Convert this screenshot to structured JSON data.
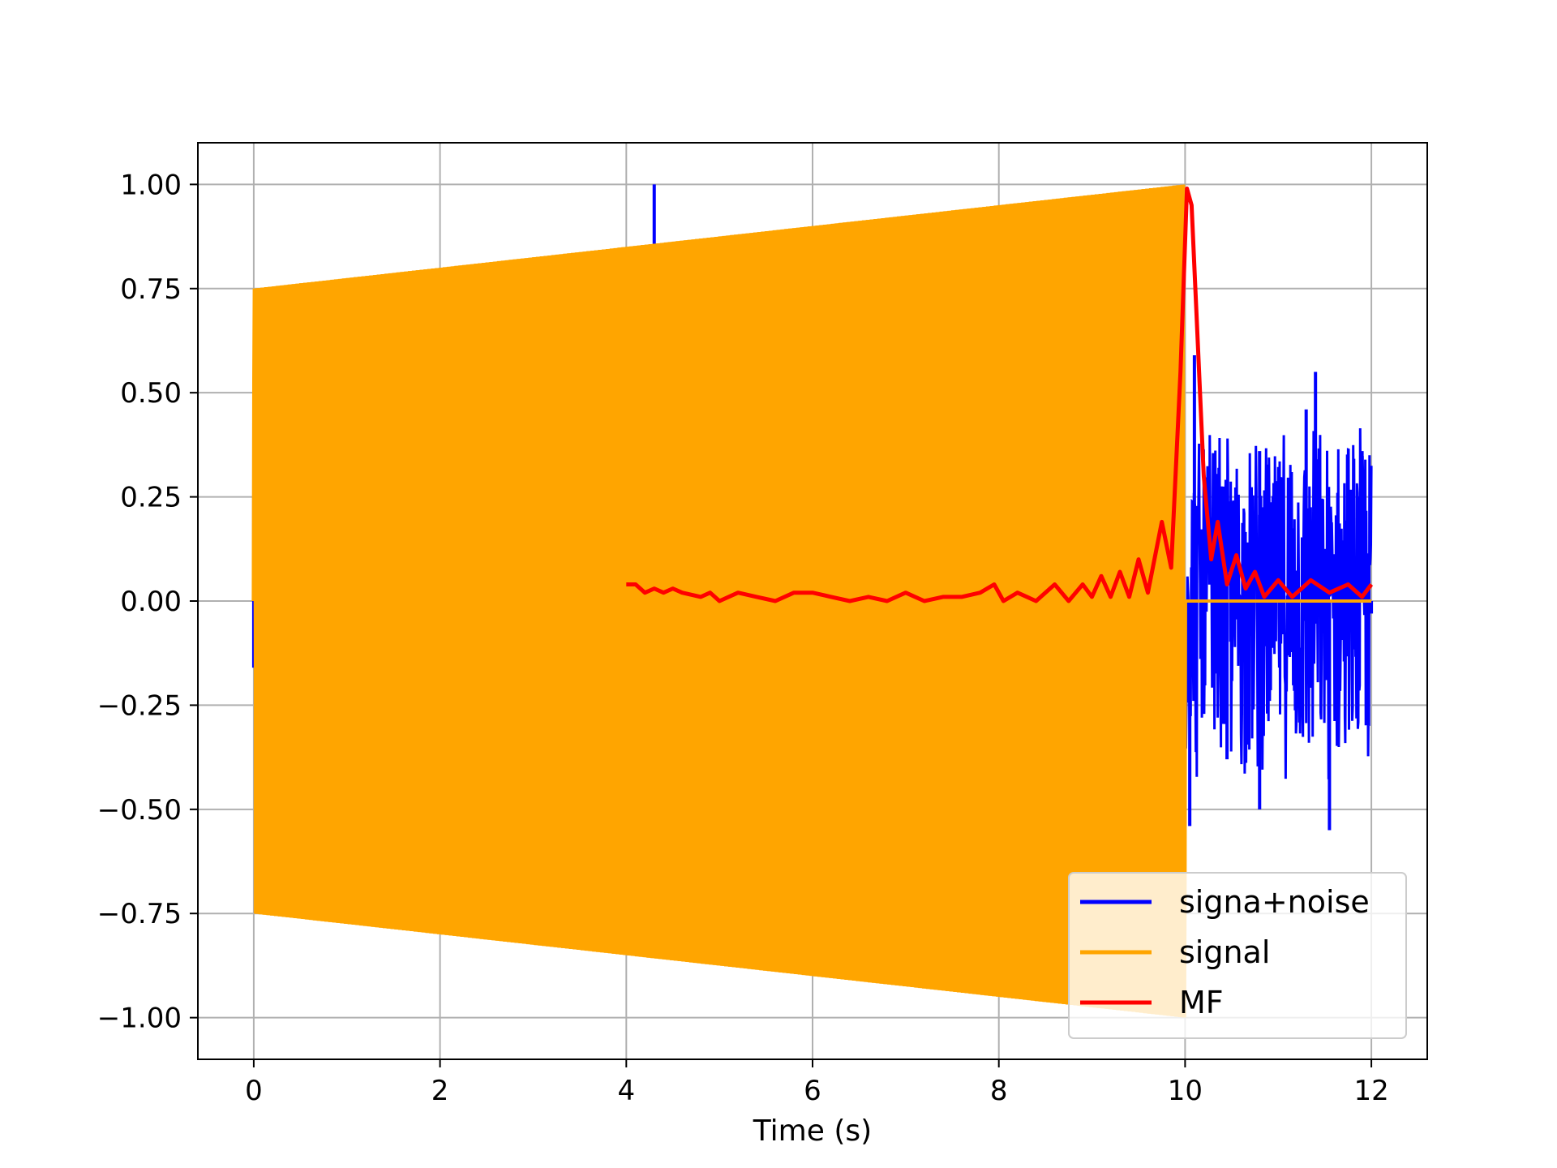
{
  "chart_data": {
    "type": "line",
    "title": "",
    "xlabel": "Time (s)",
    "ylabel": "",
    "xlim": [
      -0.6,
      12.6
    ],
    "ylim": [
      -1.1,
      1.1
    ],
    "xticks": [
      0,
      2,
      4,
      6,
      8,
      10,
      12
    ],
    "xtick_labels": [
      "0",
      "2",
      "4",
      "6",
      "8",
      "10",
      "12"
    ],
    "yticks": [
      1.0,
      0.75,
      0.5,
      0.25,
      0.0,
      -0.25,
      -0.5,
      -0.75,
      -1.0
    ],
    "ytick_labels": [
      "1.00",
      "0.75",
      "0.50",
      "0.25",
      "0.00",
      "−0.25",
      "−0.50",
      "−0.75",
      "−1.00"
    ],
    "grid": true,
    "legend_position": "lower-right",
    "series": [
      {
        "name": "signa+noise",
        "color": "#0000ff",
        "description_points": [
          {
            "x": 0.0,
            "y": 0.25
          },
          {
            "x": 0.0,
            "y": -0.16
          },
          {
            "x": 4.3,
            "y": 1.0
          },
          {
            "x": 4.35,
            "y": -0.82
          },
          {
            "x": 4.45,
            "y": -0.84
          },
          {
            "x": 10.1,
            "y": 0.59
          },
          {
            "x": 10.05,
            "y": -0.54
          },
          {
            "x": 10.45,
            "y": -0.38
          },
          {
            "x": 10.8,
            "y": 0.36
          },
          {
            "x": 10.8,
            "y": -0.5
          },
          {
            "x": 11.3,
            "y": 0.46
          },
          {
            "x": 11.4,
            "y": 0.55
          },
          {
            "x": 11.55,
            "y": -0.55
          },
          {
            "x": 11.9,
            "y": 0.36
          },
          {
            "x": 12.0,
            "y": -0.03
          }
        ],
        "noise_amplitude": 0.45
      },
      {
        "name": "signal",
        "color": "#ffa500",
        "amplitude_start": 0.75,
        "amplitude_end": 1.0,
        "x_start": 0.0,
        "x_end": 10.0,
        "after_end_value": 0.0,
        "x_after_end": 12.0
      },
      {
        "name": "MF",
        "color": "#ff0000",
        "points": [
          [
            4.0,
            0.04
          ],
          [
            4.1,
            0.04
          ],
          [
            4.2,
            0.02
          ],
          [
            4.3,
            0.03
          ],
          [
            4.4,
            0.02
          ],
          [
            4.5,
            0.03
          ],
          [
            4.6,
            0.02
          ],
          [
            4.8,
            0.01
          ],
          [
            4.9,
            0.02
          ],
          [
            5.0,
            0.0
          ],
          [
            5.2,
            0.02
          ],
          [
            5.4,
            0.01
          ],
          [
            5.6,
            0.0
          ],
          [
            5.8,
            0.02
          ],
          [
            6.0,
            0.02
          ],
          [
            6.2,
            0.01
          ],
          [
            6.4,
            0.0
          ],
          [
            6.6,
            0.01
          ],
          [
            6.8,
            0.0
          ],
          [
            7.0,
            0.02
          ],
          [
            7.2,
            0.0
          ],
          [
            7.4,
            0.01
          ],
          [
            7.6,
            0.01
          ],
          [
            7.8,
            0.02
          ],
          [
            7.95,
            0.04
          ],
          [
            8.05,
            0.0
          ],
          [
            8.2,
            0.02
          ],
          [
            8.4,
            0.0
          ],
          [
            8.6,
            0.04
          ],
          [
            8.75,
            0.0
          ],
          [
            8.9,
            0.04
          ],
          [
            9.0,
            0.01
          ],
          [
            9.1,
            0.06
          ],
          [
            9.2,
            0.01
          ],
          [
            9.3,
            0.07
          ],
          [
            9.4,
            0.01
          ],
          [
            9.5,
            0.1
          ],
          [
            9.6,
            0.02
          ],
          [
            9.75,
            0.19
          ],
          [
            9.85,
            0.08
          ],
          [
            9.95,
            0.55
          ],
          [
            10.02,
            0.99
          ],
          [
            10.07,
            0.95
          ],
          [
            10.12,
            0.7
          ],
          [
            10.2,
            0.3
          ],
          [
            10.28,
            0.1
          ],
          [
            10.35,
            0.19
          ],
          [
            10.45,
            0.04
          ],
          [
            10.55,
            0.11
          ],
          [
            10.65,
            0.03
          ],
          [
            10.75,
            0.07
          ],
          [
            10.85,
            0.01
          ],
          [
            11.0,
            0.05
          ],
          [
            11.15,
            0.01
          ],
          [
            11.35,
            0.05
          ],
          [
            11.55,
            0.02
          ],
          [
            11.75,
            0.04
          ],
          [
            11.9,
            0.01
          ],
          [
            12.0,
            0.04
          ]
        ]
      }
    ]
  }
}
